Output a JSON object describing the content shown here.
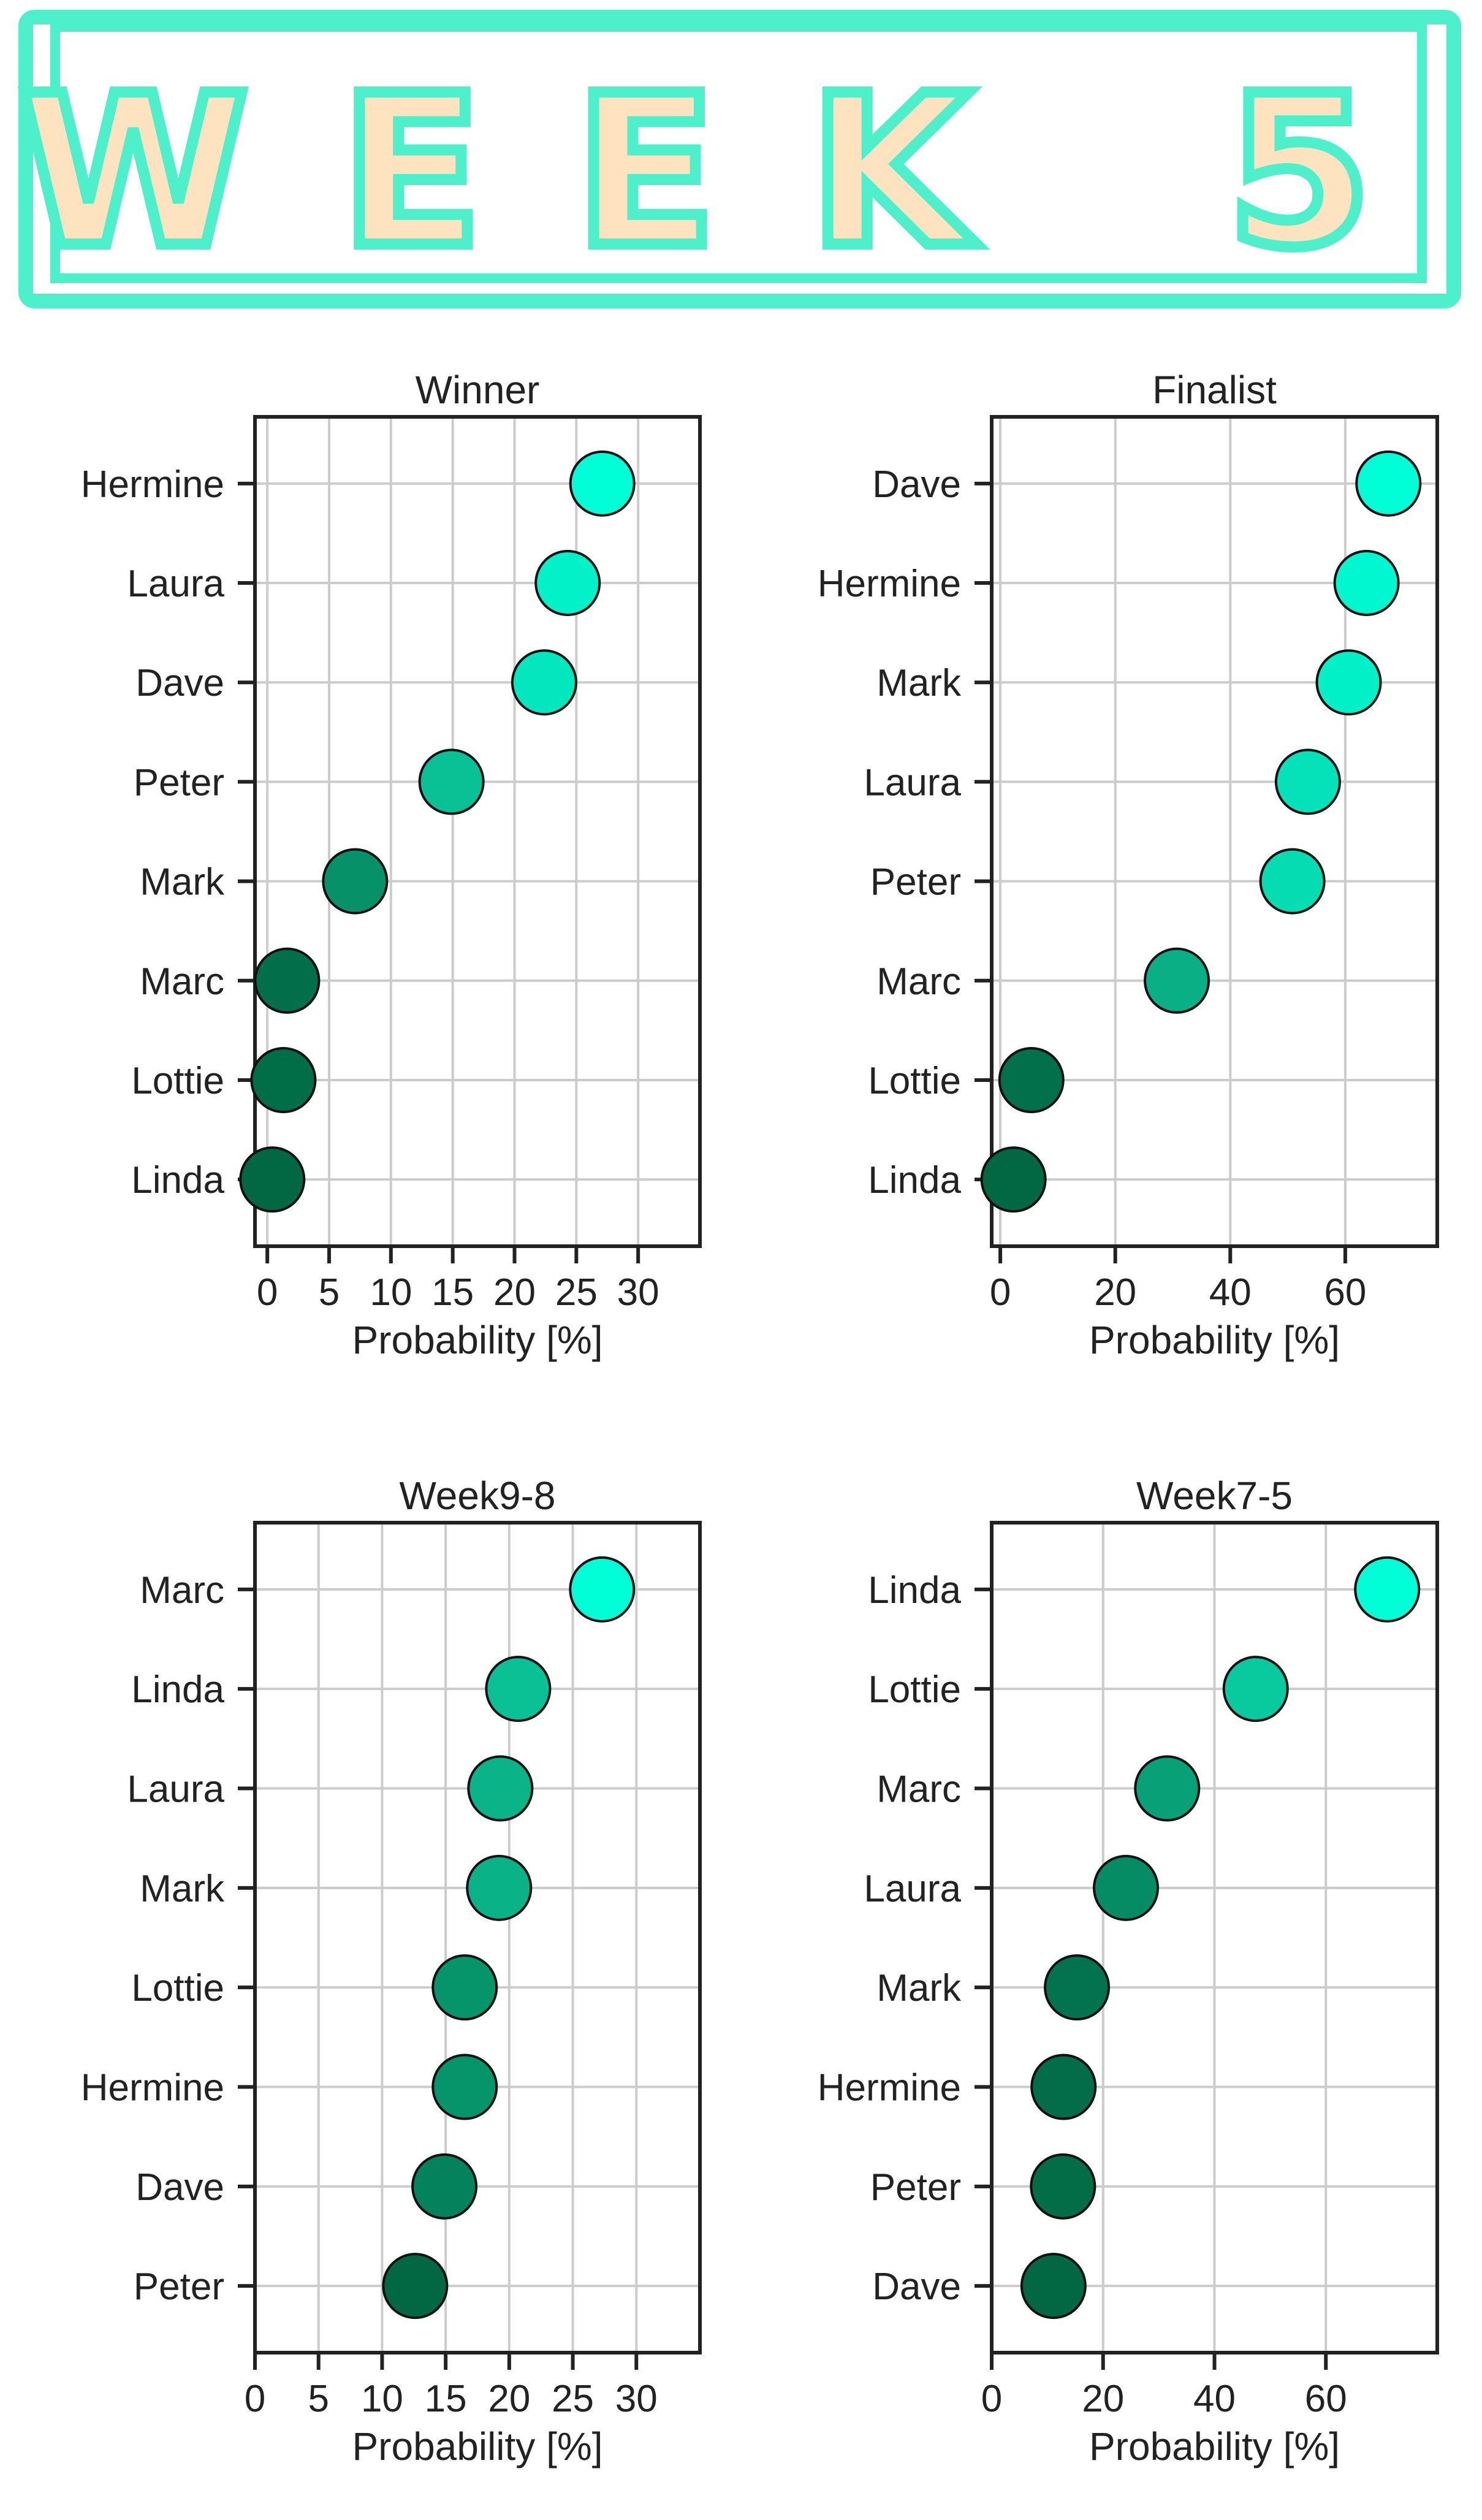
{
  "banner": {
    "title": "WEEK 5",
    "letter_fill": "#fde3c0",
    "outline_color": "#4ef0cc"
  },
  "colors": {
    "dark": "#016843",
    "mid": "#0bba8f",
    "light": "#00ffd7",
    "axes": "#222222",
    "grid": "#cccccc"
  },
  "chart_data": [
    {
      "type": "scatter",
      "title": "Winner",
      "xlabel": "Probability [%]",
      "ylabel": "",
      "xlim": [
        -1,
        35
      ],
      "xticks": [
        0,
        5,
        10,
        15,
        20,
        25,
        30
      ],
      "categories": [
        "Hermine",
        "Laura",
        "Dave",
        "Peter",
        "Mark",
        "Marc",
        "Lottie",
        "Linda"
      ],
      "values": [
        27.1,
        24.3,
        22.4,
        14.9,
        7.1,
        1.6,
        1.3,
        0.4
      ],
      "grid": true,
      "legend": "none"
    },
    {
      "type": "scatter",
      "title": "Finalist",
      "xlabel": "Probability [%]",
      "ylabel": "",
      "xlim": [
        -1.5,
        76
      ],
      "xticks": [
        0,
        20,
        40,
        60
      ],
      "categories": [
        "Dave",
        "Hermine",
        "Mark",
        "Laura",
        "Peter",
        "Marc",
        "Lottie",
        "Linda"
      ],
      "values": [
        67.5,
        63.7,
        60.6,
        53.5,
        50.8,
        30.7,
        5.4,
        2.3
      ],
      "grid": true,
      "legend": "none"
    },
    {
      "type": "scatter",
      "title": "Week9-8",
      "xlabel": "Probability [%]",
      "ylabel": "",
      "xlim": [
        0,
        35
      ],
      "xticks": [
        0,
        5,
        10,
        15,
        20,
        25,
        30
      ],
      "categories": [
        "Marc",
        "Linda",
        "Laura",
        "Mark",
        "Lottie",
        "Hermine",
        "Dave",
        "Peter"
      ],
      "values": [
        27.3,
        20.7,
        19.3,
        19.2,
        16.5,
        16.5,
        14.9,
        12.6
      ],
      "grid": true,
      "legend": "none"
    },
    {
      "type": "scatter",
      "title": "Week7-5",
      "xlabel": "Probability [%]",
      "ylabel": "",
      "xlim": [
        0,
        80
      ],
      "xticks": [
        0,
        20,
        40,
        60
      ],
      "categories": [
        "Linda",
        "Lottie",
        "Marc",
        "Laura",
        "Mark",
        "Hermine",
        "Peter",
        "Dave"
      ],
      "values": [
        71.0,
        47.4,
        31.5,
        24.1,
        15.3,
        12.9,
        12.8,
        11.1
      ],
      "grid": true,
      "legend": "none"
    }
  ]
}
